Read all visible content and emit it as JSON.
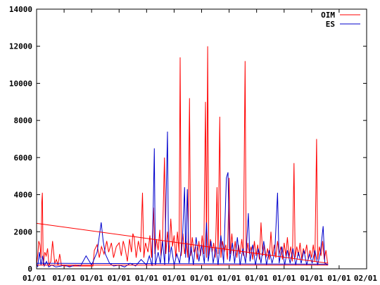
{
  "chart_data": {
    "type": "line",
    "title": "",
    "xlabel": "",
    "ylabel": "",
    "ylim": [
      0,
      14000
    ],
    "yticks": [
      0,
      2000,
      4000,
      6000,
      8000,
      10000,
      12000,
      14000
    ],
    "ytick_labels": [
      "0",
      "2000",
      "4000",
      "6000",
      "8000",
      "10000",
      "12000",
      "14000"
    ],
    "xtick_labels": [
      "01/01",
      "01/01",
      "01/01",
      "01/01",
      "01/01",
      "01/01",
      "01/01",
      "01/01",
      "01/01",
      "01/01",
      "01/01",
      "01/01",
      "02/01"
    ],
    "x_positions": [
      0,
      1,
      2,
      3,
      4,
      5,
      6,
      7,
      8,
      9,
      10,
      11,
      12
    ],
    "legend_position": "top-right",
    "grid": false,
    "series": [
      {
        "name": "OIM",
        "color": "#ff0000",
        "points": [
          [
            0.0,
            200
          ],
          [
            0.05,
            900
          ],
          [
            0.08,
            1500
          ],
          [
            0.12,
            1300
          ],
          [
            0.16,
            600
          ],
          [
            0.19,
            3600
          ],
          [
            0.21,
            4100
          ],
          [
            0.24,
            200
          ],
          [
            0.3,
            900
          ],
          [
            0.35,
            700
          ],
          [
            0.4,
            1100
          ],
          [
            0.45,
            200
          ],
          [
            0.52,
            400
          ],
          [
            0.58,
            1500
          ],
          [
            0.62,
            900
          ],
          [
            0.66,
            300
          ],
          [
            0.72,
            500
          ],
          [
            0.78,
            200
          ],
          [
            0.84,
            800
          ],
          [
            0.9,
            200
          ],
          [
            1.0,
            150
          ],
          [
            1.2,
            150
          ],
          [
            1.4,
            150
          ],
          [
            1.6,
            150
          ],
          [
            1.8,
            150
          ],
          [
            2.05,
            150
          ],
          [
            2.1,
            1000
          ],
          [
            2.2,
            1300
          ],
          [
            2.28,
            600
          ],
          [
            2.36,
            1200
          ],
          [
            2.45,
            800
          ],
          [
            2.55,
            1500
          ],
          [
            2.62,
            900
          ],
          [
            2.72,
            1400
          ],
          [
            2.8,
            600
          ],
          [
            2.9,
            1200
          ],
          [
            3.0,
            1400
          ],
          [
            3.08,
            700
          ],
          [
            3.15,
            1500
          ],
          [
            3.22,
            1100
          ],
          [
            3.3,
            400
          ],
          [
            3.38,
            1600
          ],
          [
            3.45,
            900
          ],
          [
            3.5,
            1900
          ],
          [
            3.55,
            1700
          ],
          [
            3.62,
            600
          ],
          [
            3.7,
            1500
          ],
          [
            3.78,
            900
          ],
          [
            3.85,
            4100
          ],
          [
            3.9,
            600
          ],
          [
            3.96,
            1400
          ],
          [
            4.05,
            900
          ],
          [
            4.12,
            1800
          ],
          [
            4.18,
            600
          ],
          [
            4.25,
            3300
          ],
          [
            4.3,
            800
          ],
          [
            4.36,
            1600
          ],
          [
            4.42,
            1000
          ],
          [
            4.48,
            2100
          ],
          [
            4.52,
            700
          ],
          [
            4.58,
            1700
          ],
          [
            4.65,
            6000
          ],
          [
            4.7,
            800
          ],
          [
            4.76,
            2000
          ],
          [
            4.82,
            900
          ],
          [
            4.88,
            2700
          ],
          [
            4.94,
            1200
          ],
          [
            5.0,
            1800
          ],
          [
            5.06,
            600
          ],
          [
            5.12,
            2000
          ],
          [
            5.18,
            900
          ],
          [
            5.22,
            11400
          ],
          [
            5.26,
            700
          ],
          [
            5.32,
            1900
          ],
          [
            5.38,
            800
          ],
          [
            5.44,
            1500
          ],
          [
            5.5,
            600
          ],
          [
            5.56,
            9200
          ],
          [
            5.6,
            700
          ],
          [
            5.66,
            1700
          ],
          [
            5.72,
            900
          ],
          [
            5.78,
            1200
          ],
          [
            5.84,
            500
          ],
          [
            5.9,
            1500
          ],
          [
            5.96,
            700
          ],
          [
            6.02,
            1800
          ],
          [
            6.08,
            800
          ],
          [
            6.14,
            9000
          ],
          [
            6.18,
            600
          ],
          [
            6.22,
            12000
          ],
          [
            6.26,
            700
          ],
          [
            6.32,
            1600
          ],
          [
            6.38,
            900
          ],
          [
            6.44,
            1400
          ],
          [
            6.5,
            600
          ],
          [
            6.56,
            4400
          ],
          [
            6.6,
            800
          ],
          [
            6.66,
            8200
          ],
          [
            6.7,
            600
          ],
          [
            6.76,
            1500
          ],
          [
            6.82,
            900
          ],
          [
            6.88,
            1300
          ],
          [
            6.94,
            500
          ],
          [
            7.0,
            4900
          ],
          [
            7.04,
            800
          ],
          [
            7.1,
            1900
          ],
          [
            7.16,
            700
          ],
          [
            7.22,
            1500
          ],
          [
            7.28,
            600
          ],
          [
            7.34,
            1300
          ],
          [
            7.4,
            800
          ],
          [
            7.46,
            1600
          ],
          [
            7.52,
            700
          ],
          [
            7.58,
            11200
          ],
          [
            7.62,
            600
          ],
          [
            7.68,
            1400
          ],
          [
            7.74,
            800
          ],
          [
            7.8,
            1200
          ],
          [
            7.86,
            500
          ],
          [
            7.92,
            1500
          ],
          [
            7.98,
            700
          ],
          [
            8.04,
            1300
          ],
          [
            8.1,
            500
          ],
          [
            8.16,
            2500
          ],
          [
            8.22,
            700
          ],
          [
            8.28,
            1300
          ],
          [
            8.34,
            600
          ],
          [
            8.4,
            1100
          ],
          [
            8.46,
            500
          ],
          [
            8.52,
            2000
          ],
          [
            8.58,
            700
          ],
          [
            8.64,
            1300
          ],
          [
            8.7,
            600
          ],
          [
            8.76,
            1500
          ],
          [
            8.82,
            800
          ],
          [
            8.88,
            1200
          ],
          [
            8.94,
            500
          ],
          [
            9.0,
            1400
          ],
          [
            9.06,
            700
          ],
          [
            9.12,
            1700
          ],
          [
            9.18,
            600
          ],
          [
            9.24,
            1200
          ],
          [
            9.3,
            400
          ],
          [
            9.36,
            5700
          ],
          [
            9.4,
            600
          ],
          [
            9.46,
            1200
          ],
          [
            9.52,
            700
          ],
          [
            9.58,
            1400
          ],
          [
            9.64,
            500
          ],
          [
            9.7,
            1100
          ],
          [
            9.76,
            800
          ],
          [
            9.82,
            1300
          ],
          [
            9.88,
            500
          ],
          [
            9.94,
            1000
          ],
          [
            10.0,
            600
          ],
          [
            10.06,
            1300
          ],
          [
            10.12,
            400
          ],
          [
            10.18,
            7000
          ],
          [
            10.22,
            500
          ],
          [
            10.28,
            1200
          ],
          [
            10.34,
            700
          ],
          [
            10.4,
            1500
          ],
          [
            10.46,
            500
          ],
          [
            10.52,
            1000
          ],
          [
            10.58,
            300
          ]
        ]
      },
      {
        "name": "ES",
        "color": "#0000cc",
        "points": [
          [
            0.0,
            300
          ],
          [
            0.04,
            100
          ],
          [
            0.1,
            900
          ],
          [
            0.16,
            200
          ],
          [
            0.22,
            700
          ],
          [
            0.28,
            150
          ],
          [
            0.36,
            400
          ],
          [
            0.44,
            100
          ],
          [
            0.55,
            200
          ],
          [
            0.7,
            100
          ],
          [
            0.9,
            150
          ],
          [
            1.0,
            200
          ],
          [
            1.2,
            100
          ],
          [
            1.4,
            200
          ],
          [
            1.6,
            150
          ],
          [
            1.8,
            700
          ],
          [
            2.0,
            200
          ],
          [
            2.2,
            900
          ],
          [
            2.35,
            2500
          ],
          [
            2.42,
            1500
          ],
          [
            2.5,
            800
          ],
          [
            2.65,
            300
          ],
          [
            2.8,
            150
          ],
          [
            3.0,
            200
          ],
          [
            3.2,
            100
          ],
          [
            3.4,
            300
          ],
          [
            3.6,
            150
          ],
          [
            3.8,
            500
          ],
          [
            4.0,
            200
          ],
          [
            4.1,
            700
          ],
          [
            4.2,
            150
          ],
          [
            4.28,
            6500
          ],
          [
            4.32,
            200
          ],
          [
            4.42,
            900
          ],
          [
            4.5,
            300
          ],
          [
            4.58,
            1500
          ],
          [
            4.66,
            200
          ],
          [
            4.76,
            7400
          ],
          [
            4.8,
            300
          ],
          [
            4.9,
            1200
          ],
          [
            5.0,
            200
          ],
          [
            5.1,
            800
          ],
          [
            5.2,
            300
          ],
          [
            5.3,
            1500
          ],
          [
            5.38,
            4400
          ],
          [
            5.42,
            600
          ],
          [
            5.48,
            4300
          ],
          [
            5.54,
            300
          ],
          [
            5.62,
            1200
          ],
          [
            5.7,
            200
          ],
          [
            5.8,
            1700
          ],
          [
            5.9,
            400
          ],
          [
            6.0,
            1300
          ],
          [
            6.1,
            300
          ],
          [
            6.18,
            2500
          ],
          [
            6.24,
            400
          ],
          [
            6.34,
            1500
          ],
          [
            6.42,
            300
          ],
          [
            6.52,
            1200
          ],
          [
            6.6,
            200
          ],
          [
            6.7,
            1800
          ],
          [
            6.8,
            300
          ],
          [
            6.9,
            4900
          ],
          [
            6.96,
            5200
          ],
          [
            7.02,
            400
          ],
          [
            7.12,
            1400
          ],
          [
            7.2,
            300
          ],
          [
            7.3,
            1700
          ],
          [
            7.4,
            200
          ],
          [
            7.5,
            1100
          ],
          [
            7.6,
            300
          ],
          [
            7.7,
            3000
          ],
          [
            7.76,
            400
          ],
          [
            7.86,
            1300
          ],
          [
            7.96,
            200
          ],
          [
            8.06,
            1100
          ],
          [
            8.16,
            300
          ],
          [
            8.26,
            1500
          ],
          [
            8.36,
            200
          ],
          [
            8.46,
            1000
          ],
          [
            8.56,
            300
          ],
          [
            8.66,
            900
          ],
          [
            8.76,
            4100
          ],
          [
            8.82,
            300
          ],
          [
            8.92,
            1200
          ],
          [
            9.02,
            200
          ],
          [
            9.12,
            1000
          ],
          [
            9.22,
            300
          ],
          [
            9.32,
            1100
          ],
          [
            9.42,
            200
          ],
          [
            9.52,
            900
          ],
          [
            9.62,
            300
          ],
          [
            9.72,
            1000
          ],
          [
            9.82,
            200
          ],
          [
            9.92,
            800
          ],
          [
            10.02,
            300
          ],
          [
            10.12,
            1000
          ],
          [
            10.22,
            200
          ],
          [
            10.32,
            900
          ],
          [
            10.42,
            2300
          ],
          [
            10.48,
            300
          ],
          [
            10.58,
            200
          ]
        ]
      },
      {
        "name": "",
        "color": "#ff0000",
        "points": [
          [
            0.0,
            2450
          ],
          [
            10.6,
            300
          ]
        ]
      },
      {
        "name": "",
        "color": "#0000cc",
        "points": [
          [
            0.0,
            300
          ],
          [
            10.6,
            250
          ]
        ]
      },
      {
        "name": "",
        "color": "#ff0000",
        "points": [
          [
            0.0,
            200
          ],
          [
            10.6,
            200
          ]
        ]
      }
    ]
  }
}
